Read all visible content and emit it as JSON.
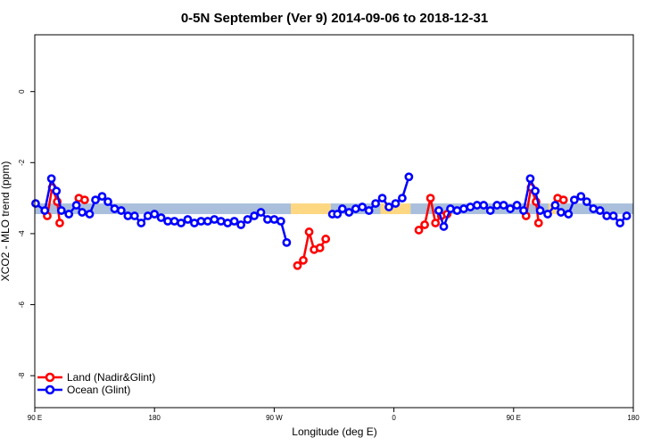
{
  "chart_data": {
    "type": "line",
    "title": "0-5N September (Ver 9)   2014-09-06 to 2018-12-31",
    "xlabel": "Longitude (deg E)",
    "ylabel": "XCO2 - MLO trend (ppm)",
    "xlim": [
      90,
      450
    ],
    "ylim": [
      -8.9,
      1.6
    ],
    "x_ticks": [
      {
        "value": 90,
        "label": "90 E"
      },
      {
        "value": 162,
        "label": "180"
      },
      {
        "value": 234,
        "label": "90 W"
      },
      {
        "value": 306,
        "label": "0"
      },
      {
        "value": 378,
        "label": "90 E"
      },
      {
        "value": 450,
        "label": "180"
      }
    ],
    "y_ticks": [
      {
        "value": 0,
        "label": "0"
      },
      {
        "value": -2,
        "label": "-2"
      },
      {
        "value": -4,
        "label": "-4"
      },
      {
        "value": -6,
        "label": "-6"
      },
      {
        "value": -8,
        "label": "-8"
      }
    ],
    "band": {
      "y_low": -3.45,
      "y_high": -3.15,
      "segments": [
        {
          "x0": 90,
          "x1": 244,
          "color": "#a9bfdc"
        },
        {
          "x0": 244,
          "x1": 268,
          "color": "#fdd782"
        },
        {
          "x0": 268,
          "x1": 298,
          "color": "#a9bfdc"
        },
        {
          "x0": 298,
          "x1": 316,
          "color": "#fdd782"
        },
        {
          "x0": 316,
          "x1": 399,
          "color": "#a9bfdc"
        },
        {
          "x0": 399,
          "x1": 404,
          "color": "#fdd782"
        },
        {
          "x0": 404,
          "x1": 450,
          "color": "#a9bfdc"
        }
      ]
    },
    "series": [
      {
        "name": "Land (Nadir&Glint)",
        "color": "#ff0000",
        "segments": [
          [
            [
              97.5,
              -3.5
            ],
            [
              100.5,
              -2.7
            ],
            [
              103.5,
              -3.1
            ],
            [
              105,
              -3.7
            ]
          ],
          [
            [
              116.5,
              -3.0
            ],
            [
              120,
              -3.05
            ]
          ],
          [
            [
              248,
              -4.9
            ],
            [
              251.5,
              -4.75
            ],
            [
              255,
              -3.95
            ],
            [
              258,
              -4.45
            ],
            [
              261.5,
              -4.4
            ],
            [
              265,
              -4.15
            ]
          ],
          [
            [
              321,
              -3.9
            ],
            [
              324.5,
              -3.75
            ],
            [
              328,
              -3.0
            ],
            [
              331,
              -3.7
            ],
            [
              334.5,
              -3.5
            ],
            [
              338,
              -3.45
            ]
          ],
          [
            [
              385.5,
              -3.5
            ],
            [
              388.5,
              -2.7
            ],
            [
              391.5,
              -3.1
            ],
            [
              393,
              -3.7
            ]
          ],
          [
            [
              404.5,
              -3.0
            ],
            [
              408,
              -3.05
            ]
          ]
        ]
      },
      {
        "name": "Ocean (Glint)",
        "color": "#0000ff",
        "segments": [
          [
            [
              90.5,
              -3.15
            ],
            [
              96,
              -3.35
            ],
            [
              100,
              -2.45
            ],
            [
              103,
              -2.8
            ],
            [
              106,
              -3.35
            ],
            [
              110.5,
              -3.45
            ],
            [
              115,
              -3.2
            ],
            [
              118.5,
              -3.4
            ],
            [
              123,
              -3.45
            ],
            [
              126.5,
              -3.05
            ],
            [
              130.5,
              -2.95
            ],
            [
              134,
              -3.1
            ],
            [
              138,
              -3.3
            ],
            [
              142,
              -3.35
            ],
            [
              146,
              -3.5
            ],
            [
              150,
              -3.5
            ],
            [
              154,
              -3.7
            ],
            [
              158,
              -3.5
            ],
            [
              162,
              -3.45
            ],
            [
              166,
              -3.55
            ],
            [
              170,
              -3.65
            ],
            [
              174,
              -3.65
            ],
            [
              178,
              -3.7
            ],
            [
              182,
              -3.6
            ],
            [
              186,
              -3.7
            ],
            [
              190,
              -3.65
            ],
            [
              194,
              -3.65
            ],
            [
              198,
              -3.6
            ],
            [
              202,
              -3.65
            ],
            [
              206,
              -3.7
            ],
            [
              210,
              -3.65
            ],
            [
              214,
              -3.75
            ],
            [
              218,
              -3.6
            ],
            [
              222,
              -3.5
            ],
            [
              226,
              -3.4
            ],
            [
              230,
              -3.6
            ],
            [
              234,
              -3.6
            ],
            [
              238,
              -3.65
            ],
            [
              241.5,
              -4.25
            ]
          ],
          [
            [
              269,
              -3.45
            ],
            [
              272,
              -3.45
            ],
            [
              275,
              -3.3
            ],
            [
              279,
              -3.4
            ],
            [
              283,
              -3.3
            ],
            [
              287,
              -3.25
            ],
            [
              291,
              -3.35
            ],
            [
              295,
              -3.15
            ],
            [
              299,
              -3.0
            ],
            [
              303,
              -3.25
            ],
            [
              307,
              -3.15
            ],
            [
              311,
              -3.0
            ],
            [
              315,
              -2.4
            ]
          ],
          [
            [
              333,
              -3.35
            ],
            [
              336,
              -3.8
            ],
            [
              340,
              -3.3
            ],
            [
              344,
              -3.35
            ],
            [
              348,
              -3.3
            ],
            [
              352,
              -3.25
            ],
            [
              356,
              -3.2
            ],
            [
              360,
              -3.2
            ],
            [
              364,
              -3.35
            ],
            [
              368,
              -3.2
            ],
            [
              372,
              -3.2
            ],
            [
              376,
              -3.3
            ],
            [
              380,
              -3.2
            ],
            [
              384,
              -3.35
            ],
            [
              388,
              -2.45
            ],
            [
              391,
              -2.8
            ],
            [
              394,
              -3.35
            ],
            [
              398.5,
              -3.45
            ],
            [
              403,
              -3.2
            ],
            [
              406.5,
              -3.4
            ],
            [
              411,
              -3.45
            ],
            [
              414.5,
              -3.05
            ],
            [
              418.5,
              -2.95
            ],
            [
              422,
              -3.1
            ],
            [
              426,
              -3.3
            ],
            [
              430,
              -3.35
            ],
            [
              434,
              -3.5
            ],
            [
              438,
              -3.5
            ],
            [
              442,
              -3.7
            ],
            [
              446,
              -3.5
            ]
          ]
        ]
      }
    ],
    "legend_position": "bottom-left",
    "grid": false
  }
}
